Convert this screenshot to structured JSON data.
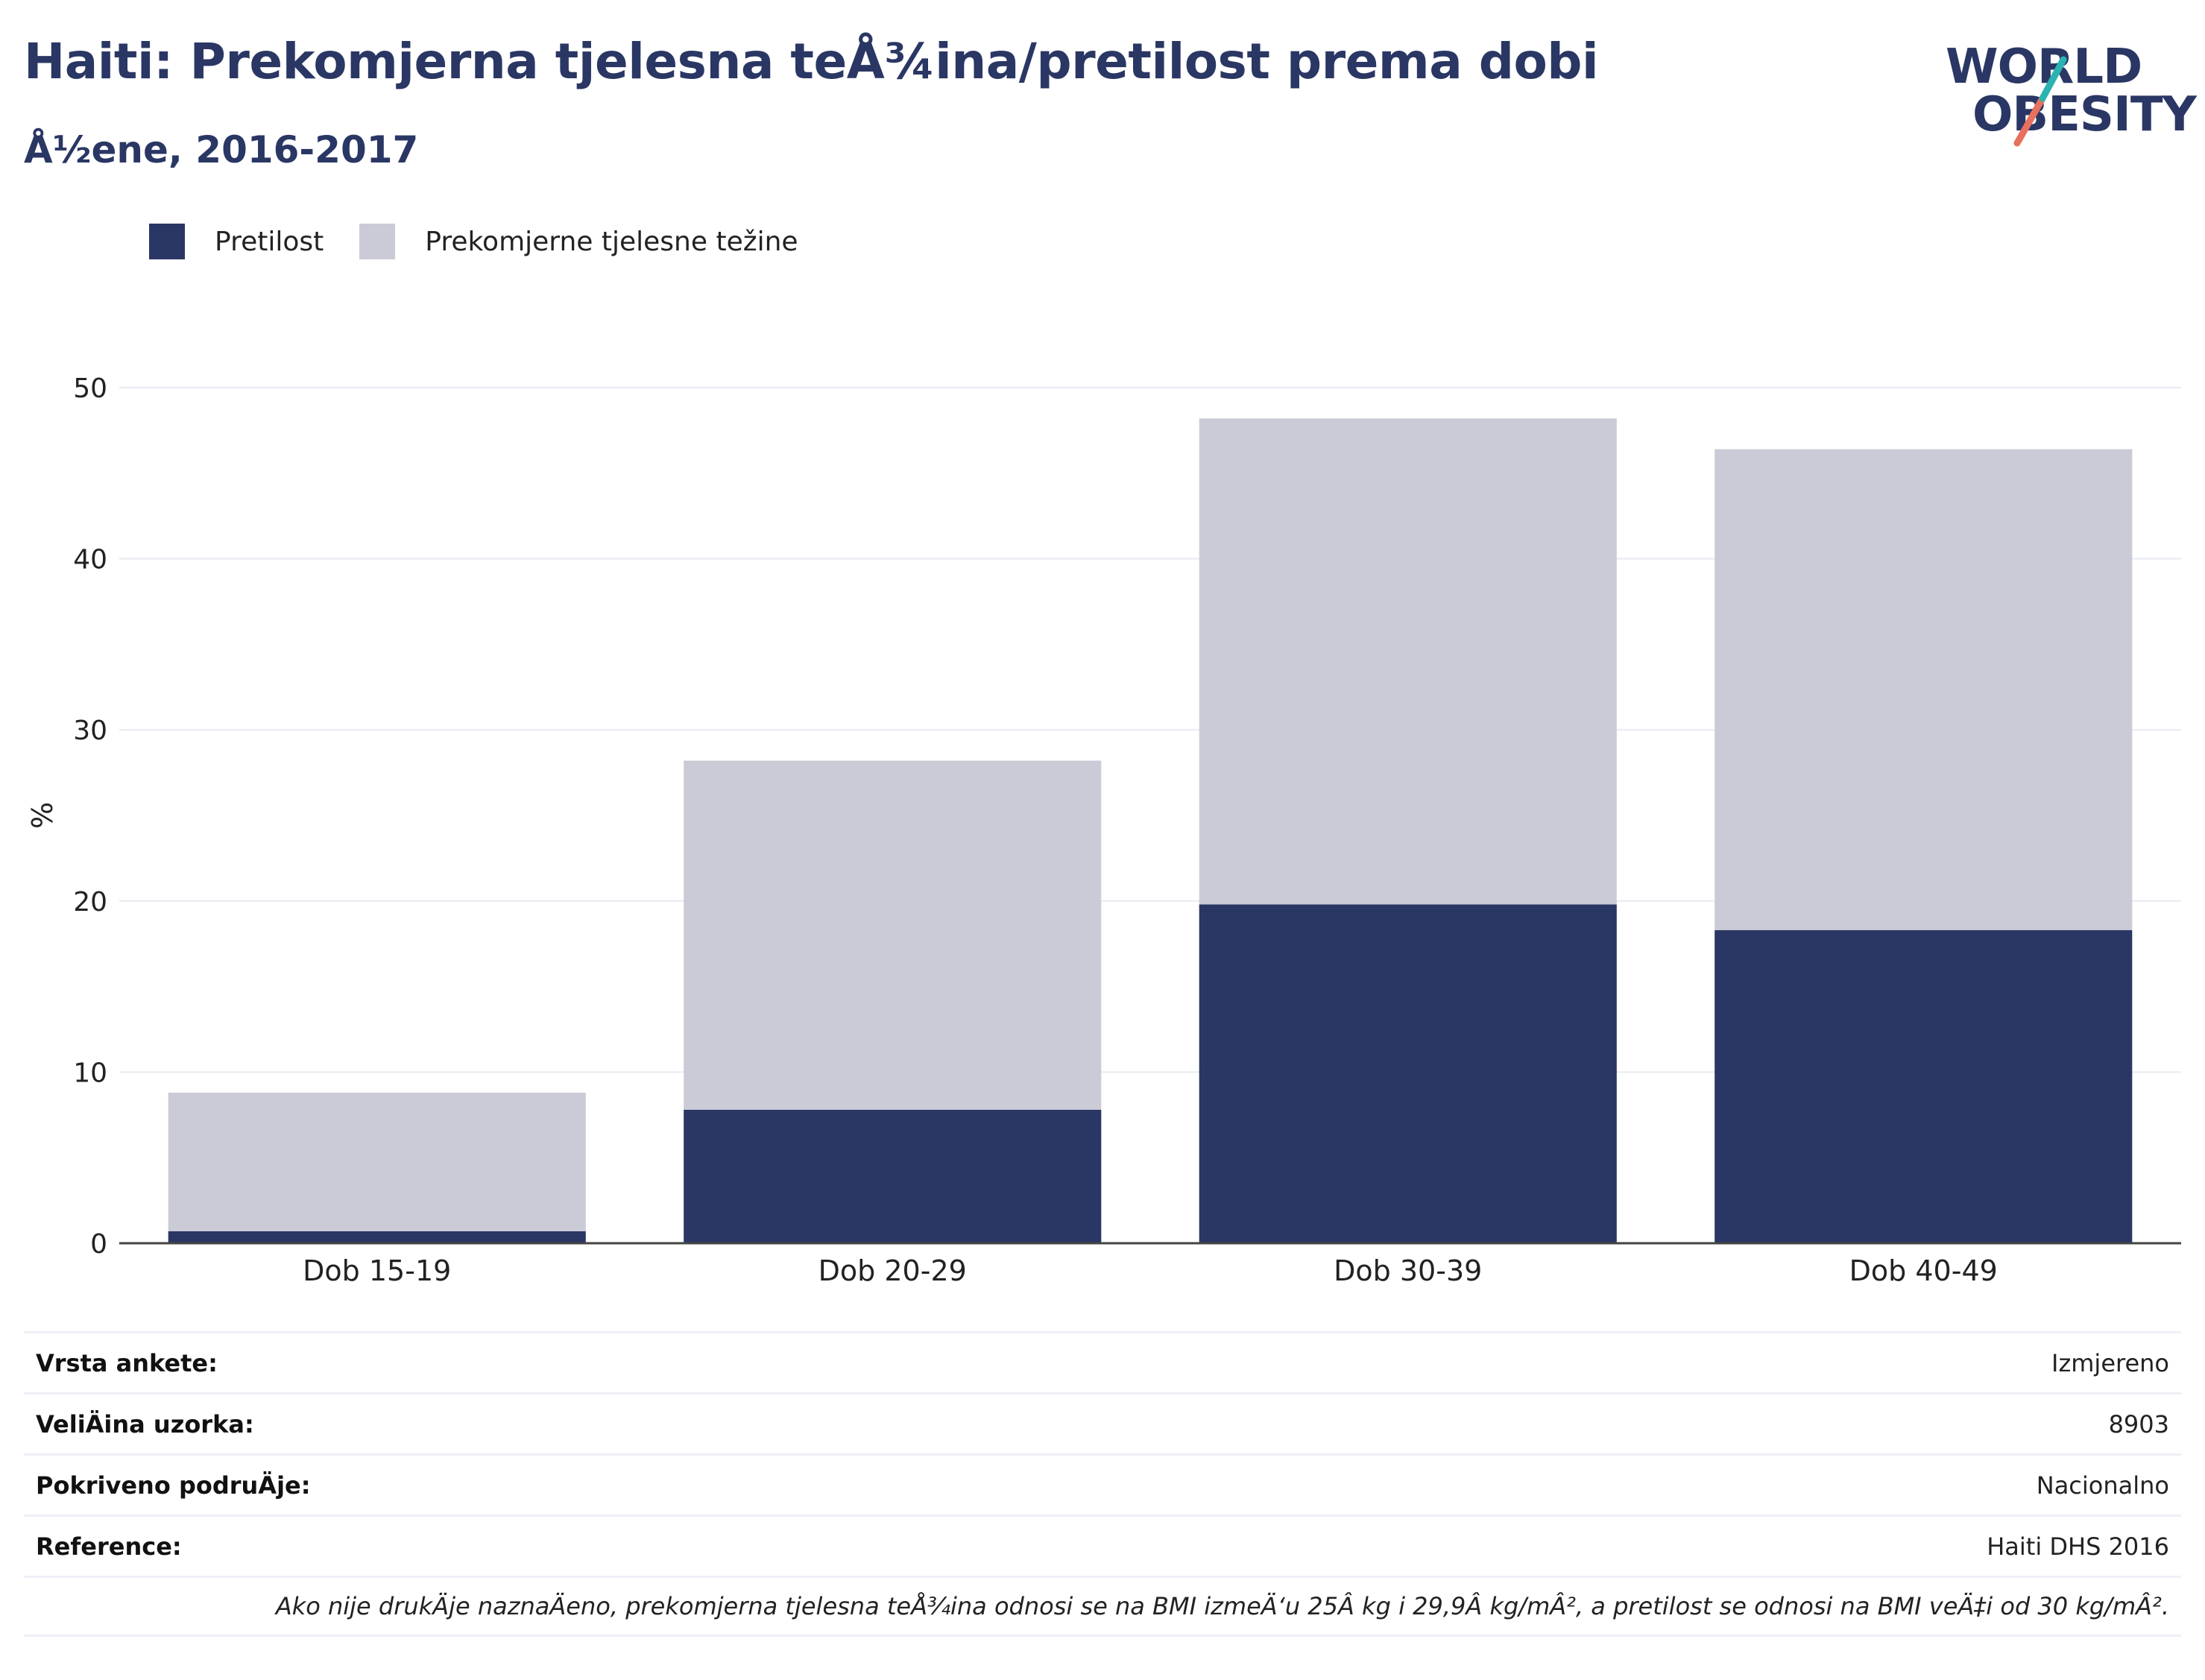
{
  "header": {
    "title": "Haiti: Prekomjerna tjelesna teÅ¾ina/pretilost prema dobi",
    "subtitle": "Å½ene, 2016-2017"
  },
  "logo": {
    "line1": "WORLD",
    "line2": "OBESITY",
    "accent_teal": "#2bb3b1",
    "accent_coral": "#e8705f"
  },
  "legend": [
    {
      "label": "Pretilost",
      "color": "#2a3764"
    },
    {
      "label": "Prekomjerne tjelesne težine",
      "color": "#cacbd6"
    }
  ],
  "chart_data": {
    "type": "bar",
    "stacked": true,
    "categories": [
      "Dob 15-19",
      "Dob 20-29",
      "Dob 30-39",
      "Dob 40-49"
    ],
    "series": [
      {
        "name": "Pretilost",
        "color": "#2a3764",
        "values": [
          0.7,
          7.8,
          19.8,
          18.3
        ]
      },
      {
        "name": "Prekomjerne tjelesne težine",
        "color": "#cacbd6",
        "values": [
          8.1,
          20.4,
          28.4,
          28.1
        ]
      }
    ],
    "ylabel": "%",
    "ylim": [
      0,
      50
    ],
    "yticks": [
      "0",
      "10",
      "20",
      "30",
      "40",
      "50"
    ],
    "grid": true,
    "legend_position": "top-left"
  },
  "info_table": [
    {
      "label": "Vrsta ankete:",
      "value": "Izmjereno"
    },
    {
      "label": "VeliÄ\u001fina uzorka:",
      "value": "8903"
    },
    {
      "label": "Pokriveno podruÄ\u001fje:",
      "value": "Nacionalno"
    },
    {
      "label": "Reference:",
      "value": "Haiti DHS 2016"
    }
  ],
  "footnote": "Ako nije drukÄ\u001fje naznaÄ\u001feno, prekomjerna tjelesna teÅ¾ina odnosi se na BMI izmeÄ‘u 25Â kg i 29,9Â kg/mÂ², a pretilost se odnosi na BMI veÄ‡i od 30 kg/mÂ²."
}
